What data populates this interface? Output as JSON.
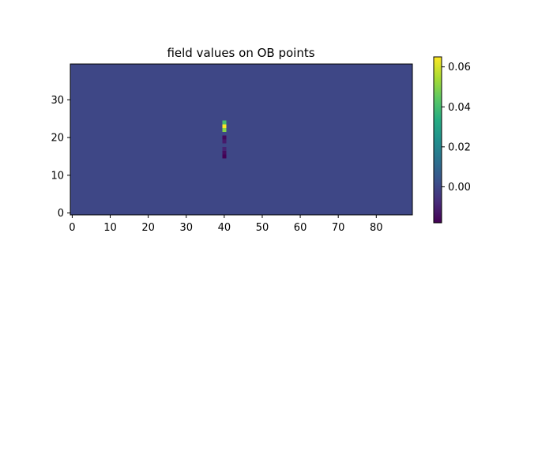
{
  "chart_data": {
    "type": "heatmap",
    "title": "field values on OB points",
    "xlabel": "",
    "ylabel": "",
    "grid": false,
    "x_range": [
      -0.5,
      89.5
    ],
    "y_range": [
      -0.5,
      39.5
    ],
    "x_ticks": [
      0,
      10,
      20,
      30,
      40,
      50,
      60,
      70,
      80
    ],
    "y_ticks": [
      0,
      10,
      20,
      30
    ],
    "background_value": 0.0,
    "color_range": [
      -0.018,
      0.065
    ],
    "colormap": "viridis",
    "cells": [
      {
        "x": 40,
        "y": 15,
        "value": -0.018
      },
      {
        "x": 40,
        "y": 16,
        "value": -0.015
      },
      {
        "x": 40,
        "y": 17,
        "value": -0.01
      },
      {
        "x": 40,
        "y": 18,
        "value": 0.0
      },
      {
        "x": 40,
        "y": 19,
        "value": -0.012
      },
      {
        "x": 40,
        "y": 20,
        "value": -0.016
      },
      {
        "x": 40,
        "y": 21,
        "value": 0.0
      },
      {
        "x": 40,
        "y": 22,
        "value": 0.05
      },
      {
        "x": 40,
        "y": 23,
        "value": 0.065
      },
      {
        "x": 40,
        "y": 24,
        "value": 0.04
      }
    ],
    "colorbar": {
      "ticks": [
        0.0,
        0.02,
        0.04,
        0.06
      ],
      "tick_labels": [
        "0.00",
        "0.02",
        "0.04",
        "0.06"
      ]
    }
  }
}
